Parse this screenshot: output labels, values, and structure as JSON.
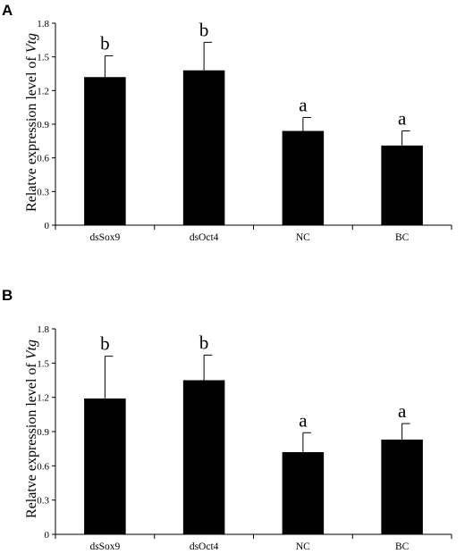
{
  "chart_data": [
    {
      "type": "bar",
      "panel_label": "A",
      "categories": [
        "dsSox9",
        "dsOct4",
        "NC",
        "BC"
      ],
      "values": [
        1.32,
        1.38,
        0.84,
        0.71
      ],
      "errors": [
        0.19,
        0.25,
        0.12,
        0.13
      ],
      "significance": [
        "b",
        "b",
        "a",
        "a"
      ],
      "ylabel_prefix": "Relatve expression level of ",
      "ylabel_gene": "Vtg",
      "ylim": [
        0,
        1.8
      ],
      "yticks": [
        "0",
        "0.3",
        "0.6",
        "0.9",
        "1.2",
        "1.5",
        "1.8"
      ],
      "grid": false,
      "bar_color": "#000000"
    },
    {
      "type": "bar",
      "panel_label": "B",
      "categories": [
        "dsSox9",
        "dsOct4",
        "NC",
        "BC"
      ],
      "values": [
        1.19,
        1.35,
        0.72,
        0.83
      ],
      "errors": [
        0.37,
        0.22,
        0.17,
        0.14
      ],
      "significance": [
        "b",
        "b",
        "a",
        "a"
      ],
      "ylabel_prefix": "Relatve expression level of ",
      "ylabel_gene": "Vtg",
      "ylim": [
        0,
        1.8
      ],
      "yticks": [
        "0",
        "0.3",
        "0.6",
        "0.9",
        "1.2",
        "1.5",
        "1.8"
      ],
      "grid": false,
      "bar_color": "#000000"
    }
  ]
}
